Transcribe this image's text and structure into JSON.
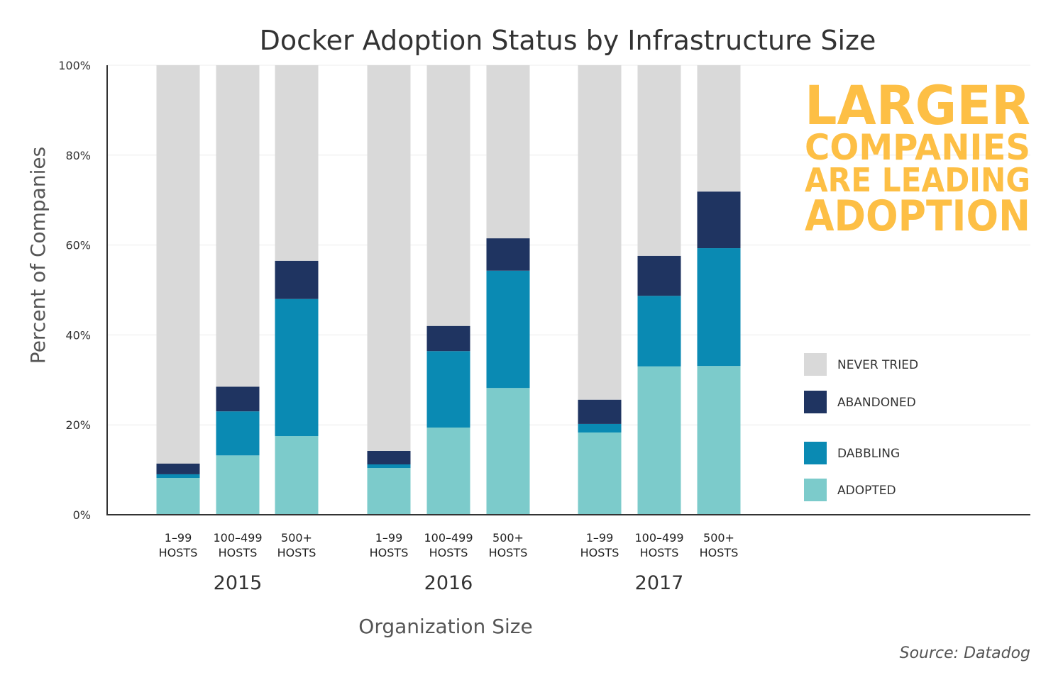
{
  "chart_data": {
    "type": "bar",
    "stacked": true,
    "title": "Docker Adoption Status by Infrastructure Size",
    "xlabel": "Organization Size",
    "ylabel": "Percent of Companies",
    "ylim": [
      0,
      100
    ],
    "yticks": [
      "0%",
      "20%",
      "40%",
      "60%",
      "80%",
      "100%"
    ],
    "grid": true,
    "legend_position": "right",
    "groups": [
      {
        "year": "2015",
        "categories": [
          [
            "1–99",
            "HOSTS"
          ],
          [
            "100–499",
            "HOSTS"
          ],
          [
            "500+",
            "HOSTS"
          ]
        ]
      },
      {
        "year": "2016",
        "categories": [
          [
            "1–99",
            "HOSTS"
          ],
          [
            "100–499",
            "HOSTS"
          ],
          [
            "500+",
            "HOSTS"
          ]
        ]
      },
      {
        "year": "2017",
        "categories": [
          [
            "1–99",
            "HOSTS"
          ],
          [
            "100–499",
            "HOSTS"
          ],
          [
            "500+",
            "HOSTS"
          ]
        ]
      }
    ],
    "series": [
      {
        "name": "ADOPTED",
        "color": "#7ccbcb",
        "values": [
          8.2,
          13.2,
          17.5,
          10.4,
          19.4,
          28.2,
          18.3,
          33.0,
          33.1
        ]
      },
      {
        "name": "DABBLING",
        "color": "#0a8ab3",
        "values": [
          0.8,
          9.8,
          30.5,
          0.8,
          17.0,
          26.1,
          1.9,
          15.7,
          26.2
        ]
      },
      {
        "name": "ABANDONED",
        "color": "#1f3461",
        "values": [
          2.4,
          5.5,
          8.5,
          3.0,
          5.6,
          7.2,
          5.4,
          8.9,
          12.6
        ]
      },
      {
        "name": "NEVER TRIED",
        "color": "#d9d9d9",
        "values": [
          88.6,
          71.5,
          43.5,
          85.8,
          58.0,
          38.5,
          74.4,
          42.4,
          28.1
        ]
      }
    ],
    "legend_order": [
      "NEVER TRIED",
      "ABANDONED",
      "DABBLING",
      "ADOPTED"
    ],
    "callout": [
      "LARGER",
      "COMPANIES",
      "ARE LEADING",
      "ADOPTION"
    ],
    "callout_color": "#fdbf45",
    "source": "Source: Datadog"
  }
}
